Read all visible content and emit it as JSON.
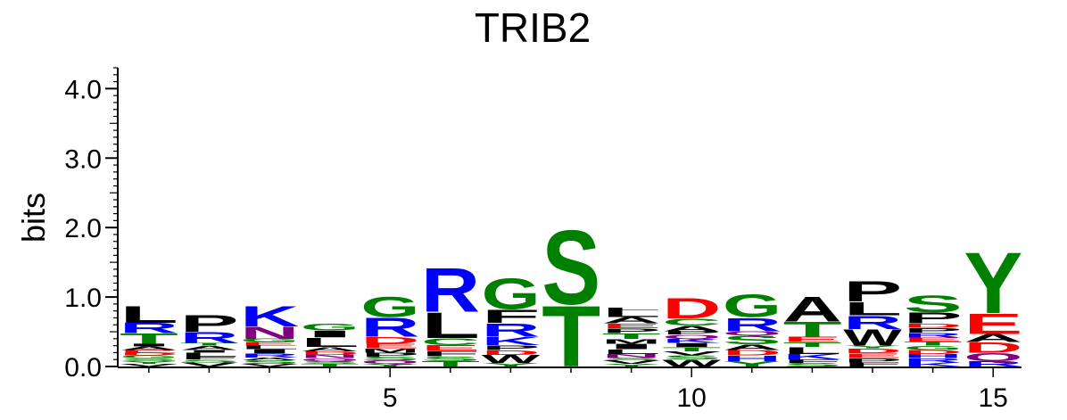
{
  "chart_data": {
    "type": "sequence-logo",
    "title": "TRIB2",
    "ylabel": "bits",
    "xlabel": "",
    "ylim": [
      0,
      4.3
    ],
    "yticks": [
      "0.0",
      "1.0",
      "2.0",
      "3.0",
      "4.0"
    ],
    "ytick_values": [
      0,
      1,
      2,
      3,
      4
    ],
    "xticks": [
      "5",
      "10",
      "15"
    ],
    "xtick_positions": [
      5,
      10,
      15
    ],
    "colors": {
      "A": "#000000",
      "C": "#008000",
      "D": "#ff0000",
      "E": "#ff0000",
      "F": "#000000",
      "G": "#008000",
      "H": "#0000ff",
      "I": "#000000",
      "K": "#0000ff",
      "L": "#000000",
      "M": "#000000",
      "N": "#800080",
      "P": "#000000",
      "Q": "#800080",
      "R": "#0000ff",
      "S": "#008000",
      "T": "#008000",
      "V": "#000000",
      "W": "#000000",
      "Y": "#008000"
    },
    "positions": [
      {
        "pos": 1,
        "letters": [
          [
            "V",
            0.04
          ],
          [
            "Y",
            0.04
          ],
          [
            "S",
            0.04
          ],
          [
            "G",
            0.04
          ],
          [
            "D",
            0.04
          ],
          [
            "E",
            0.04
          ],
          [
            "A",
            0.05
          ],
          [
            "I",
            0.04
          ],
          [
            "T",
            0.15
          ],
          [
            "R",
            0.15
          ],
          [
            "L",
            0.25
          ]
        ]
      },
      {
        "pos": 2,
        "letters": [
          [
            "V",
            0.06
          ],
          [
            "S",
            0.04
          ],
          [
            "F",
            0.04
          ],
          [
            "L",
            0.06
          ],
          [
            "I",
            0.04
          ],
          [
            "A",
            0.06
          ],
          [
            "T",
            0.04
          ],
          [
            "R",
            0.16
          ],
          [
            "P",
            0.25
          ]
        ]
      },
      {
        "pos": 3,
        "letters": [
          [
            "V",
            0.04
          ],
          [
            "S",
            0.05
          ],
          [
            "A",
            0.04
          ],
          [
            "R",
            0.06
          ],
          [
            "I",
            0.06
          ],
          [
            "L",
            0.05
          ],
          [
            "E",
            0.05
          ],
          [
            "G",
            0.05
          ],
          [
            "N",
            0.18
          ],
          [
            "K",
            0.3
          ]
        ]
      },
      {
        "pos": 4,
        "letters": [
          [
            "T",
            0.04
          ],
          [
            "S",
            0.04
          ],
          [
            "Q",
            0.04
          ],
          [
            "N",
            0.05
          ],
          [
            "D",
            0.05
          ],
          [
            "A",
            0.06
          ],
          [
            "L",
            0.14
          ],
          [
            "I",
            0.1
          ],
          [
            "G",
            0.1
          ]
        ]
      },
      {
        "pos": 5,
        "letters": [
          [
            "Y",
            0.04
          ],
          [
            "Q",
            0.05
          ],
          [
            "S",
            0.05
          ],
          [
            "P",
            0.06
          ],
          [
            "M",
            0.06
          ],
          [
            "E",
            0.07
          ],
          [
            "D",
            0.1
          ],
          [
            "R",
            0.28
          ],
          [
            "G",
            0.3
          ]
        ]
      },
      {
        "pos": 6,
        "letters": [
          [
            "T",
            0.08
          ],
          [
            "S",
            0.07
          ],
          [
            "F",
            0.08
          ],
          [
            "E",
            0.08
          ],
          [
            "C",
            0.1
          ],
          [
            "L",
            0.38
          ],
          [
            "R",
            0.65
          ]
        ]
      },
      {
        "pos": 7,
        "letters": [
          [
            "Y",
            0.05
          ],
          [
            "W",
            0.12
          ],
          [
            "D",
            0.07
          ],
          [
            "P",
            0.07
          ],
          [
            "K",
            0.12
          ],
          [
            "R",
            0.2
          ],
          [
            "F",
            0.2
          ],
          [
            "G",
            0.45
          ]
        ]
      },
      {
        "pos": 8,
        "letters": [
          [
            "T",
            0.9
          ],
          [
            "S",
            1.1
          ]
        ]
      },
      {
        "pos": 9,
        "letters": [
          [
            "Y",
            0.04
          ],
          [
            "V",
            0.05
          ],
          [
            "S",
            0.04
          ],
          [
            "N",
            0.05
          ],
          [
            "L",
            0.07
          ],
          [
            "I",
            0.08
          ],
          [
            "M",
            0.07
          ],
          [
            "T",
            0.08
          ],
          [
            "P",
            0.07
          ],
          [
            "E",
            0.07
          ],
          [
            "A",
            0.09
          ],
          [
            "L",
            0.1
          ],
          [
            "L",
            0.04
          ]
        ]
      },
      {
        "pos": 10,
        "letters": [
          [
            "W",
            0.1
          ],
          [
            "S",
            0.06
          ],
          [
            "V",
            0.06
          ],
          [
            "T",
            0.06
          ],
          [
            "I",
            0.06
          ],
          [
            "K",
            0.06
          ],
          [
            "Q",
            0.06
          ],
          [
            "P",
            0.05
          ],
          [
            "A",
            0.08
          ],
          [
            "C",
            0.1
          ],
          [
            "D",
            0.3
          ]
        ]
      },
      {
        "pos": 11,
        "letters": [
          [
            "Y",
            0.08
          ],
          [
            "H",
            0.08
          ],
          [
            "D",
            0.08
          ],
          [
            "A",
            0.08
          ],
          [
            "S",
            0.13
          ],
          [
            "Q",
            0.06
          ],
          [
            "R",
            0.2
          ],
          [
            "G",
            0.33
          ]
        ]
      },
      {
        "pos": 12,
        "letters": [
          [
            "S",
            0.05
          ],
          [
            "F",
            0.05
          ],
          [
            "K",
            0.08
          ],
          [
            "L",
            0.1
          ],
          [
            "T",
            0.07
          ],
          [
            "E",
            0.08
          ],
          [
            "T",
            0.22
          ],
          [
            "A",
            0.37
          ]
        ]
      },
      {
        "pos": 13,
        "letters": [
          [
            "F",
            0.06
          ],
          [
            "P",
            0.06
          ],
          [
            "E",
            0.07
          ],
          [
            "D",
            0.07
          ],
          [
            "Y",
            0.04
          ],
          [
            "W",
            0.24
          ],
          [
            "R",
            0.2
          ],
          [
            "L",
            0.2
          ],
          [
            "P",
            0.3
          ]
        ]
      },
      {
        "pos": 14,
        "letters": [
          [
            "K",
            0.06
          ],
          [
            "R",
            0.06
          ],
          [
            "H",
            0.06
          ],
          [
            "D",
            0.06
          ],
          [
            "G",
            0.06
          ],
          [
            "T",
            0.06
          ],
          [
            "E",
            0.06
          ],
          [
            "R",
            0.07
          ],
          [
            "P",
            0.07
          ],
          [
            "D",
            0.06
          ],
          [
            "P",
            0.16
          ],
          [
            "S",
            0.25
          ]
        ]
      },
      {
        "pos": 15,
        "letters": [
          [
            "R",
            0.08
          ],
          [
            "Q",
            0.12
          ],
          [
            "D",
            0.15
          ],
          [
            "A",
            0.12
          ],
          [
            "E",
            0.3
          ],
          [
            "Y",
            0.9
          ]
        ]
      }
    ]
  }
}
